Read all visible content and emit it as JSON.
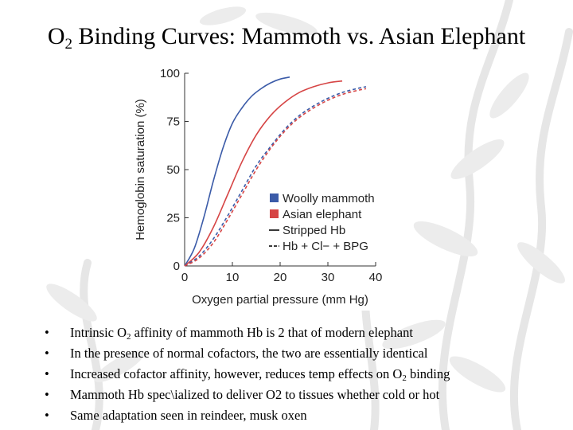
{
  "slide": {
    "title_pre": "O",
    "title_sub": "2",
    "title_post": " Binding Curves: Mammoth vs. Asian Elephant",
    "bullet_glyph": "•",
    "bullets": [
      {
        "pre": "Intrinsic O",
        "sub": "2",
        "post": " affinity of mammoth Hb is 2 that of modern elephant"
      },
      {
        "pre": "In the presence of normal cofactors, the two are essentially identical",
        "sub": "",
        "post": ""
      },
      {
        "pre": "Increased cofactor affinity, however, reduces temp effects on O",
        "sub": "2",
        "post": " binding"
      },
      {
        "pre": "Mammoth Hb spec\\ialized to deliver O2 to tissues whether cold or hot",
        "sub": "",
        "post": ""
      },
      {
        "pre": "Same adaptation seen in reindeer, musk oxen",
        "sub": "",
        "post": ""
      }
    ]
  },
  "chart_data": {
    "type": "line",
    "title": "",
    "xlabel": "Oxygen partial pressure (mm Hg)",
    "ylabel": "Hemoglobin saturation (%)",
    "xlim": [
      0,
      40
    ],
    "ylim": [
      0,
      100
    ],
    "xticks": [
      0,
      10,
      20,
      30,
      40
    ],
    "yticks": [
      0,
      25,
      50,
      75,
      100
    ],
    "grid": false,
    "legend_position": "lower-right",
    "legend": [
      {
        "label": "Woolly mammoth",
        "kind": "swatch",
        "color": "#3b5ba8"
      },
      {
        "label": "Asian elephant",
        "kind": "swatch",
        "color": "#d64545"
      },
      {
        "label": "Stripped Hb",
        "kind": "solid"
      },
      {
        "label": "Hb + Cl− + BPG",
        "kind": "dashed"
      }
    ],
    "series": [
      {
        "species": "Woolly mammoth",
        "condition": "Stripped Hb",
        "color": "#3b5ba8",
        "dash": false,
        "x": [
          0,
          2,
          4,
          6,
          8,
          10,
          12,
          14,
          16,
          18,
          20,
          22
        ],
        "y": [
          0,
          9,
          25,
          44,
          61,
          74,
          82,
          88,
          92,
          95,
          97,
          98
        ]
      },
      {
        "species": "Asian elephant",
        "condition": "Stripped Hb",
        "color": "#d64545",
        "dash": false,
        "x": [
          0,
          3,
          6,
          9,
          12,
          15,
          18,
          21,
          24,
          27,
          30,
          33
        ],
        "y": [
          0,
          7,
          20,
          37,
          54,
          68,
          78,
          85,
          90,
          93,
          95,
          96
        ]
      },
      {
        "species": "Woolly mammoth",
        "condition": "Hb + Cl− + BPG",
        "color": "#3b5ba8",
        "dash": true,
        "x": [
          0,
          3,
          6,
          9,
          12,
          15,
          18,
          21,
          24,
          27,
          30,
          33,
          36,
          38
        ],
        "y": [
          0,
          5,
          14,
          26,
          39,
          52,
          62,
          71,
          78,
          83,
          87,
          90,
          92,
          93
        ]
      },
      {
        "species": "Asian elephant",
        "condition": "Hb + Cl− + BPG",
        "color": "#d64545",
        "dash": true,
        "x": [
          0,
          3,
          6,
          9,
          12,
          15,
          18,
          21,
          24,
          27,
          30,
          33,
          36,
          38
        ],
        "y": [
          0,
          4,
          12,
          24,
          37,
          50,
          61,
          70,
          77,
          82,
          86,
          89,
          91,
          92
        ]
      }
    ]
  }
}
